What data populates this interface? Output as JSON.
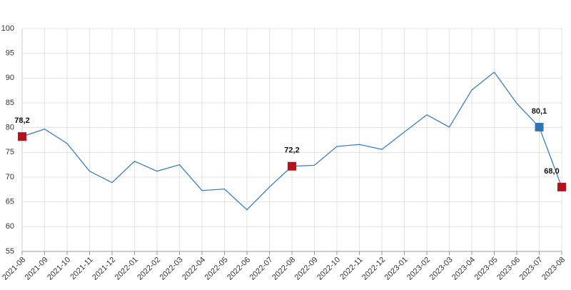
{
  "chart_data": {
    "type": "line",
    "categories": [
      "2021-08",
      "2021-09",
      "2021-10",
      "2021-11",
      "2021-12",
      "2022-01",
      "2022-02",
      "2022-03",
      "2022-04",
      "2022-05",
      "2022-06",
      "2022-07",
      "2022-08",
      "2022-09",
      "2022-10",
      "2022-11",
      "2022-12",
      "2023-01",
      "2023-02",
      "2023-03",
      "2023-04",
      "2023-05",
      "2023-06",
      "2023-07",
      "2023-08"
    ],
    "values": [
      78.2,
      79.7,
      76.8,
      71.2,
      68.9,
      73.2,
      71.2,
      72.5,
      67.3,
      67.6,
      63.4,
      68.0,
      72.2,
      72.4,
      76.2,
      76.6,
      75.6,
      79.1,
      82.6,
      80.1,
      87.6,
      91.2,
      84.9,
      80.1,
      68.0
    ],
    "value_labels": [
      "78,2",
      null,
      null,
      null,
      null,
      null,
      null,
      null,
      null,
      null,
      null,
      null,
      "72,2",
      null,
      null,
      null,
      null,
      null,
      null,
      null,
      null,
      null,
      null,
      "80,1",
      "68,0"
    ],
    "marker_colors": [
      "#b5121b",
      null,
      null,
      null,
      null,
      null,
      null,
      null,
      null,
      null,
      null,
      null,
      "#b5121b",
      null,
      null,
      null,
      null,
      null,
      null,
      null,
      null,
      null,
      null,
      "#2e75b6",
      "#b5121b"
    ],
    "color": "#3a7fc1",
    "ylim": [
      55,
      100
    ],
    "yticks": [
      55,
      60,
      65,
      70,
      75,
      80,
      85,
      90,
      95,
      100
    ],
    "grid": true
  }
}
